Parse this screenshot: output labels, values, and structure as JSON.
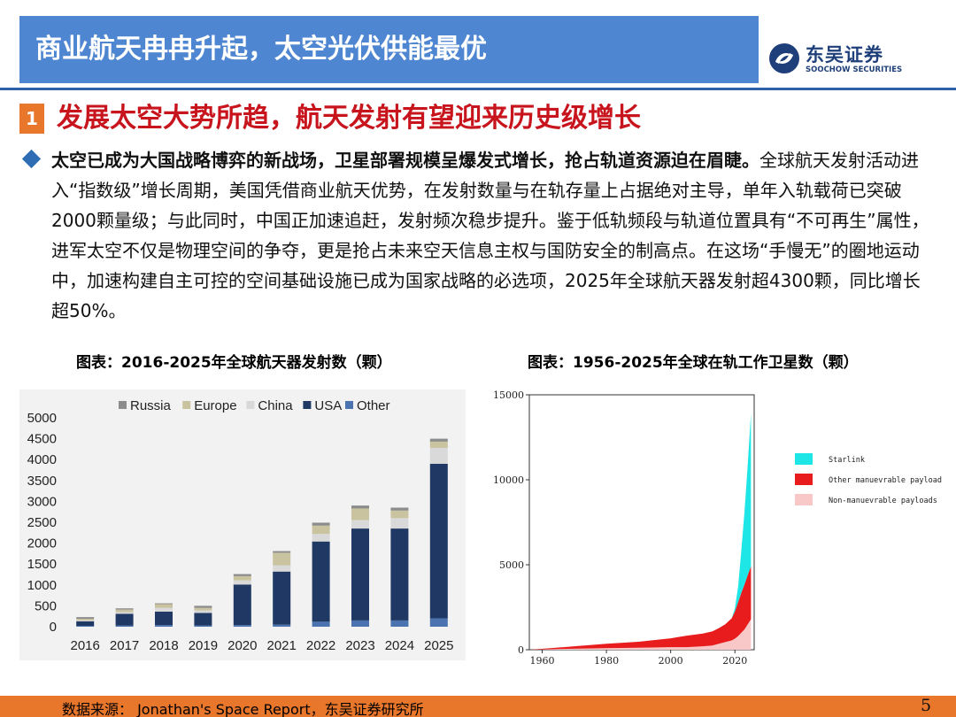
{
  "header": {
    "title": "商业航天冉冉升起，太空光伏供能最优"
  },
  "logo": {
    "name_cn": "东吴证券",
    "name_en": "SOOCHOW SECURITIES"
  },
  "section": {
    "number": "1",
    "title": "发展太空大势所趋，航天发射有望迎来历史级增长"
  },
  "bullet": {
    "bold_text": "太空已成为大国战略博弈的新战场，卫星部署规模呈爆发式增长，抢占轨道资源迫在眉睫。",
    "text": "全球航天发射活动进入“指数级”增长周期，美国凭借商业航天优势，在发射数量与在轨存量上占据绝对主导，单年入轨载荷已突破2000颗量级；与此同时，中国正加速追赶，发射频次稳步提升。鉴于低轨频段与轨道位置具有“不可再生”属性，进军太空不仅是物理空间的争夺，更是抢占未来空天信息主权与国防安全的制高点。在这场“手慢无”的圈地运动中，加速构建自主可控的空间基础设施已成为国家战略的必选项，2025年全球航天器发射超4300颗，同比增长超50%。"
  },
  "captions": {
    "left": "图表：2016-2025年全球航天器发射数（颗）",
    "right": "图表：1956-2025年全球在轨工作卫星数（颗）"
  },
  "chart_data": [
    {
      "type": "bar",
      "stacked": true,
      "title": "",
      "categories": [
        "2016",
        "2017",
        "2018",
        "2019",
        "2020",
        "2021",
        "2022",
        "2023",
        "2024",
        "2025"
      ],
      "series": [
        {
          "name": "Other",
          "color": "#4A73B0",
          "values": [
            20,
            30,
            40,
            30,
            40,
            50,
            120,
            150,
            150,
            200
          ]
        },
        {
          "name": "USA",
          "color": "#1F3864",
          "values": [
            110,
            280,
            320,
            300,
            970,
            1270,
            1920,
            2200,
            2200,
            3700
          ]
        },
        {
          "name": "China",
          "color": "#D9D9D9",
          "values": [
            20,
            40,
            90,
            60,
            100,
            150,
            180,
            200,
            250,
            380
          ]
        },
        {
          "name": "Europe",
          "color": "#C9C3A0",
          "values": [
            40,
            60,
            90,
            60,
            100,
            300,
            200,
            280,
            180,
            150
          ]
        },
        {
          "name": "Russia",
          "color": "#8C8C8C",
          "values": [
            40,
            30,
            20,
            50,
            50,
            40,
            70,
            70,
            70,
            70
          ]
        }
      ],
      "ylim": [
        0,
        5000
      ],
      "yticks": [
        0,
        500,
        1000,
        1500,
        2000,
        2500,
        3000,
        3500,
        4000,
        4500,
        5000
      ],
      "legend_position": "top",
      "grid": false
    },
    {
      "type": "area",
      "stacked": true,
      "title": "",
      "x": [
        1956,
        1970,
        1980,
        1990,
        2000,
        2005,
        2010,
        2013,
        2015,
        2017,
        2019,
        2020,
        2021,
        2022,
        2023,
        2024,
        2025
      ],
      "series": [
        {
          "name": "Non-manuevrable payloads",
          "color": "#F8C8C8",
          "values": [
            0,
            60,
            90,
            120,
            150,
            150,
            200,
            250,
            350,
            450,
            550,
            650,
            800,
            1000,
            1200,
            1500,
            1800
          ]
        },
        {
          "name": "Other manuevrable payloads",
          "color": "#E81C1C",
          "values": [
            0,
            140,
            260,
            350,
            520,
            680,
            750,
            830,
            920,
            1050,
            1300,
            1600,
            2000,
            2350,
            2650,
            2900,
            3100
          ]
        },
        {
          "name": "Starlink",
          "color": "#1EE6E6",
          "values": [
            0,
            0,
            0,
            0,
            0,
            0,
            0,
            0,
            0,
            0,
            0,
            200,
            900,
            2500,
            4300,
            6500,
            9000
          ]
        }
      ],
      "xticks": [
        1960,
        1980,
        2000,
        2020
      ],
      "yticks": [
        0,
        5000,
        10000,
        15000
      ],
      "xlim": [
        1956,
        2026
      ],
      "ylim": [
        0,
        15000
      ],
      "legend_position": "right"
    }
  ],
  "footer": {
    "source": "数据来源： Jonathan's Space Report，东吴证券研究所",
    "page_number": "5"
  }
}
